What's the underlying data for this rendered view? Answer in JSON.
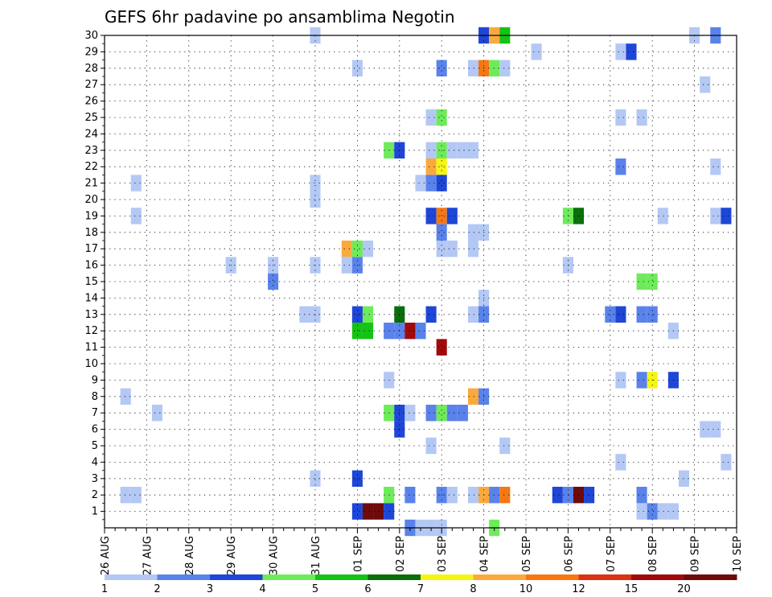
{
  "chart_data": {
    "type": "heatmap",
    "title": "GEFS 6hr padavine po ansamblima Negotin",
    "xlabel": "",
    "ylabel": "",
    "x_ticks": [
      "26 AUG",
      "27 AUG",
      "28 AUG",
      "29 AUG",
      "30 AUG",
      "31 AUG",
      "01 SEP",
      "02 SEP",
      "03 SEP",
      "04 SEP",
      "05 SEP",
      "06 SEP",
      "07 SEP",
      "08 SEP",
      "09 SEP",
      "10 SEP"
    ],
    "x_range_days": [
      0,
      15
    ],
    "y_range": [
      0,
      30
    ],
    "y_ticks": [
      1,
      2,
      3,
      4,
      5,
      6,
      7,
      8,
      9,
      10,
      11,
      12,
      13,
      14,
      15,
      16,
      17,
      18,
      19,
      20,
      21,
      22,
      23,
      24,
      25,
      26,
      27,
      28,
      29,
      30
    ],
    "grid": "dotted",
    "legend": {
      "placement": "bottom",
      "labels": [
        "1",
        "2",
        "3",
        "4",
        "5",
        "6",
        "7",
        "8",
        "10",
        "12",
        "15",
        "20"
      ],
      "colors": [
        "#b4c8f5",
        "#5a82eb",
        "#1e46d7",
        "#6eeb5a",
        "#14c314",
        "#0a6e0a",
        "#f5f514",
        "#faaa3c",
        "#f57814",
        "#dc3214",
        "#a00a0a",
        "#6e0a0a"
      ]
    },
    "cells": [
      {
        "day": 5.0,
        "member": 30,
        "level": 1
      },
      {
        "day": 9.0,
        "member": 30,
        "level": 3
      },
      {
        "day": 9.25,
        "member": 30,
        "level": 8
      },
      {
        "day": 9.5,
        "member": 30,
        "level": 5
      },
      {
        "day": 14.0,
        "member": 30,
        "level": 1
      },
      {
        "day": 14.5,
        "member": 30,
        "level": 2
      },
      {
        "day": 10.25,
        "member": 29,
        "level": 1
      },
      {
        "day": 12.25,
        "member": 29,
        "level": 1
      },
      {
        "day": 12.5,
        "member": 29,
        "level": 3
      },
      {
        "day": 6.0,
        "member": 28,
        "level": 1
      },
      {
        "day": 8.0,
        "member": 28,
        "level": 2
      },
      {
        "day": 8.75,
        "member": 28,
        "level": 1
      },
      {
        "day": 9.0,
        "member": 28,
        "level": 10
      },
      {
        "day": 9.25,
        "member": 28,
        "level": 4
      },
      {
        "day": 9.5,
        "member": 28,
        "level": 1
      },
      {
        "day": 14.25,
        "member": 27,
        "level": 1
      },
      {
        "day": 7.75,
        "member": 25,
        "level": 1
      },
      {
        "day": 8.0,
        "member": 25,
        "level": 4
      },
      {
        "day": 12.25,
        "member": 25,
        "level": 1
      },
      {
        "day": 12.75,
        "member": 25,
        "level": 1
      },
      {
        "day": 6.75,
        "member": 23,
        "level": 4
      },
      {
        "day": 7.0,
        "member": 23,
        "level": 3
      },
      {
        "day": 7.75,
        "member": 23,
        "level": 1
      },
      {
        "day": 8.0,
        "member": 23,
        "level": 4
      },
      {
        "day": 8.25,
        "member": 23,
        "level": 1
      },
      {
        "day": 8.5,
        "member": 23,
        "level": 1
      },
      {
        "day": 8.75,
        "member": 23,
        "level": 1
      },
      {
        "day": 7.75,
        "member": 22,
        "level": 8
      },
      {
        "day": 8.0,
        "member": 22,
        "level": 7
      },
      {
        "day": 12.25,
        "member": 22,
        "level": 2
      },
      {
        "day": 14.5,
        "member": 22,
        "level": 1
      },
      {
        "day": 0.75,
        "member": 21,
        "level": 1
      },
      {
        "day": 5.0,
        "member": 21,
        "level": 1
      },
      {
        "day": 7.5,
        "member": 21,
        "level": 1
      },
      {
        "day": 7.75,
        "member": 21,
        "level": 2
      },
      {
        "day": 8.0,
        "member": 21,
        "level": 3
      },
      {
        "day": 5.0,
        "member": 20,
        "level": 1
      },
      {
        "day": 0.75,
        "member": 19,
        "level": 1
      },
      {
        "day": 7.75,
        "member": 19,
        "level": 3
      },
      {
        "day": 8.0,
        "member": 19,
        "level": 10
      },
      {
        "day": 8.25,
        "member": 19,
        "level": 3
      },
      {
        "day": 11.0,
        "member": 19,
        "level": 4
      },
      {
        "day": 11.25,
        "member": 19,
        "level": 6
      },
      {
        "day": 13.25,
        "member": 19,
        "level": 1
      },
      {
        "day": 14.5,
        "member": 19,
        "level": 1
      },
      {
        "day": 14.75,
        "member": 19,
        "level": 3
      },
      {
        "day": 8.0,
        "member": 18,
        "level": 2
      },
      {
        "day": 8.75,
        "member": 18,
        "level": 1
      },
      {
        "day": 9.0,
        "member": 18,
        "level": 1
      },
      {
        "day": 5.75,
        "member": 17,
        "level": 8
      },
      {
        "day": 6.0,
        "member": 17,
        "level": 4
      },
      {
        "day": 6.25,
        "member": 17,
        "level": 1
      },
      {
        "day": 8.0,
        "member": 17,
        "level": 1
      },
      {
        "day": 8.25,
        "member": 17,
        "level": 1
      },
      {
        "day": 8.75,
        "member": 17,
        "level": 1
      },
      {
        "day": 3.0,
        "member": 16,
        "level": 1
      },
      {
        "day": 4.0,
        "member": 16,
        "level": 1
      },
      {
        "day": 5.0,
        "member": 16,
        "level": 1
      },
      {
        "day": 5.75,
        "member": 16,
        "level": 1
      },
      {
        "day": 6.0,
        "member": 16,
        "level": 2
      },
      {
        "day": 11.0,
        "member": 16,
        "level": 1
      },
      {
        "day": 4.0,
        "member": 15,
        "level": 2
      },
      {
        "day": 12.75,
        "member": 15,
        "level": 4
      },
      {
        "day": 13.0,
        "member": 15,
        "level": 4
      },
      {
        "day": 9.0,
        "member": 14,
        "level": 1
      },
      {
        "day": 4.75,
        "member": 13,
        "level": 1
      },
      {
        "day": 5.0,
        "member": 13,
        "level": 1
      },
      {
        "day": 6.0,
        "member": 13,
        "level": 3
      },
      {
        "day": 6.25,
        "member": 13,
        "level": 4
      },
      {
        "day": 7.0,
        "member": 13,
        "level": 6
      },
      {
        "day": 7.75,
        "member": 13,
        "level": 3
      },
      {
        "day": 8.75,
        "member": 13,
        "level": 1
      },
      {
        "day": 9.0,
        "member": 13,
        "level": 2
      },
      {
        "day": 12.0,
        "member": 13,
        "level": 2
      },
      {
        "day": 12.25,
        "member": 13,
        "level": 3
      },
      {
        "day": 12.75,
        "member": 13,
        "level": 2
      },
      {
        "day": 13.0,
        "member": 13,
        "level": 2
      },
      {
        "day": 6.0,
        "member": 12,
        "level": 5
      },
      {
        "day": 6.25,
        "member": 12,
        "level": 5
      },
      {
        "day": 6.75,
        "member": 12,
        "level": 2
      },
      {
        "day": 7.0,
        "member": 12,
        "level": 2
      },
      {
        "day": 7.25,
        "member": 12,
        "level": 15
      },
      {
        "day": 7.5,
        "member": 12,
        "level": 2
      },
      {
        "day": 13.5,
        "member": 12,
        "level": 1
      },
      {
        "day": 8.0,
        "member": 11,
        "level": 15
      },
      {
        "day": 6.75,
        "member": 9,
        "level": 1
      },
      {
        "day": 12.25,
        "member": 9,
        "level": 1
      },
      {
        "day": 12.75,
        "member": 9,
        "level": 2
      },
      {
        "day": 13.0,
        "member": 9,
        "level": 7
      },
      {
        "day": 13.5,
        "member": 9,
        "level": 3
      },
      {
        "day": 0.5,
        "member": 8,
        "level": 1
      },
      {
        "day": 8.75,
        "member": 8,
        "level": 8
      },
      {
        "day": 9.0,
        "member": 8,
        "level": 2
      },
      {
        "day": 1.25,
        "member": 7,
        "level": 1
      },
      {
        "day": 6.75,
        "member": 7,
        "level": 4
      },
      {
        "day": 7.0,
        "member": 7,
        "level": 3
      },
      {
        "day": 7.25,
        "member": 7,
        "level": 1
      },
      {
        "day": 7.75,
        "member": 7,
        "level": 2
      },
      {
        "day": 8.0,
        "member": 7,
        "level": 4
      },
      {
        "day": 8.25,
        "member": 7,
        "level": 2
      },
      {
        "day": 8.5,
        "member": 7,
        "level": 2
      },
      {
        "day": 7.0,
        "member": 6,
        "level": 3
      },
      {
        "day": 14.25,
        "member": 6,
        "level": 1
      },
      {
        "day": 14.5,
        "member": 6,
        "level": 1
      },
      {
        "day": 7.75,
        "member": 5,
        "level": 1
      },
      {
        "day": 9.5,
        "member": 5,
        "level": 1
      },
      {
        "day": 12.25,
        "member": 4,
        "level": 1
      },
      {
        "day": 14.75,
        "member": 4,
        "level": 1
      },
      {
        "day": 5.0,
        "member": 3,
        "level": 1
      },
      {
        "day": 6.0,
        "member": 3,
        "level": 3
      },
      {
        "day": 13.75,
        "member": 3,
        "level": 1
      },
      {
        "day": 0.5,
        "member": 2,
        "level": 1
      },
      {
        "day": 0.75,
        "member": 2,
        "level": 1
      },
      {
        "day": 6.75,
        "member": 2,
        "level": 4
      },
      {
        "day": 7.25,
        "member": 2,
        "level": 2
      },
      {
        "day": 8.0,
        "member": 2,
        "level": 2
      },
      {
        "day": 8.25,
        "member": 2,
        "level": 1
      },
      {
        "day": 8.75,
        "member": 2,
        "level": 1
      },
      {
        "day": 9.0,
        "member": 2,
        "level": 8
      },
      {
        "day": 9.25,
        "member": 2,
        "level": 2
      },
      {
        "day": 9.5,
        "member": 2,
        "level": 10
      },
      {
        "day": 10.75,
        "member": 2,
        "level": 3
      },
      {
        "day": 11.0,
        "member": 2,
        "level": 2
      },
      {
        "day": 11.25,
        "member": 2,
        "level": 20
      },
      {
        "day": 11.5,
        "member": 2,
        "level": 3
      },
      {
        "day": 12.75,
        "member": 2,
        "level": 2
      },
      {
        "day": 6.0,
        "member": 1,
        "level": 3
      },
      {
        "day": 6.25,
        "member": 1,
        "level": 21
      },
      {
        "day": 6.5,
        "member": 1,
        "level": 20
      },
      {
        "day": 6.75,
        "member": 1,
        "level": 3
      },
      {
        "day": 12.75,
        "member": 1,
        "level": 1
      },
      {
        "day": 13.0,
        "member": 1,
        "level": 2
      },
      {
        "day": 13.25,
        "member": 1,
        "level": 1
      },
      {
        "day": 13.5,
        "member": 1,
        "level": 1
      },
      {
        "day": 7.25,
        "member": 0,
        "level": 2
      },
      {
        "day": 7.5,
        "member": 0,
        "level": 1
      },
      {
        "day": 7.75,
        "member": 0,
        "level": 1
      },
      {
        "day": 8.0,
        "member": 0,
        "level": 1
      },
      {
        "day": 9.25,
        "member": 0,
        "level": 4
      }
    ]
  }
}
